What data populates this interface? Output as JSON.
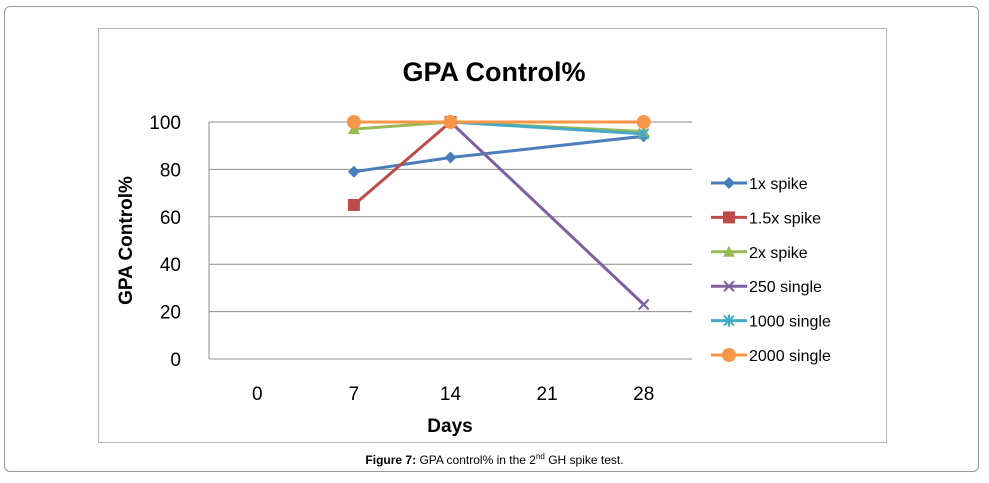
{
  "chart_data": {
    "type": "line",
    "title": "GPA Control%",
    "xlabel": "Days",
    "ylabel": "GPA Control%",
    "x_ticks": [
      "0",
      "7",
      "14",
      "21",
      "28"
    ],
    "y_ticks": [
      "0",
      "20",
      "40",
      "60",
      "80",
      "100"
    ],
    "ylim": [
      0,
      100
    ],
    "x_categories": [
      0,
      7,
      14,
      21,
      28
    ],
    "legend_position": "right",
    "series": [
      {
        "name": "1x spike",
        "color": "#4a7ebb",
        "marker": "diamond",
        "x": [
          7,
          14,
          28
        ],
        "values": [
          79,
          85,
          94
        ]
      },
      {
        "name": "1.5x spike",
        "color": "#be4b48",
        "marker": "square",
        "x": [
          7,
          14
        ],
        "values": [
          65,
          100
        ]
      },
      {
        "name": "2x spike",
        "color": "#98b954",
        "marker": "triangle",
        "x": [
          7,
          14,
          28
        ],
        "values": [
          97,
          100,
          96
        ]
      },
      {
        "name": "250 single",
        "color": "#7d60a0",
        "marker": "x",
        "x": [
          14,
          28
        ],
        "values": [
          100,
          23
        ]
      },
      {
        "name": "1000 single",
        "color": "#46aac5",
        "marker": "star",
        "x": [
          14,
          28
        ],
        "values": [
          100,
          95
        ]
      },
      {
        "name": "2000 single",
        "color": "#f79646",
        "marker": "circle",
        "x": [
          7,
          14,
          28
        ],
        "values": [
          100,
          100,
          100
        ]
      }
    ]
  },
  "caption": {
    "label": "Figure 7:",
    "text_before": "GPA control% in the 2",
    "sup": "nd",
    "text_after": " GH spike test."
  }
}
